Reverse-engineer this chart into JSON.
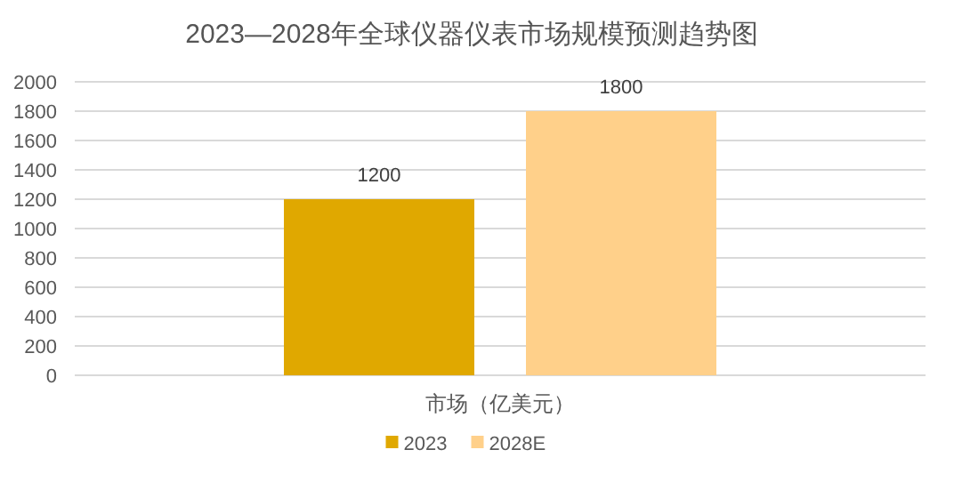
{
  "chart_data": {
    "type": "bar",
    "title": "2023—2028年全球仪器仪表市场规模预测趋势图",
    "categories": [
      "市场（亿美元）"
    ],
    "series": [
      {
        "name": "2023",
        "color": "#e0a800",
        "values": [
          1200
        ]
      },
      {
        "name": "2028E",
        "color": "#ffd08a",
        "values": [
          1800
        ]
      }
    ],
    "ylim": [
      0,
      2000
    ],
    "yticks": [
      0,
      200,
      400,
      600,
      800,
      1000,
      1200,
      1400,
      1600,
      1800,
      2000
    ],
    "grid": "y",
    "legend": "bottom",
    "data_labels": true
  }
}
